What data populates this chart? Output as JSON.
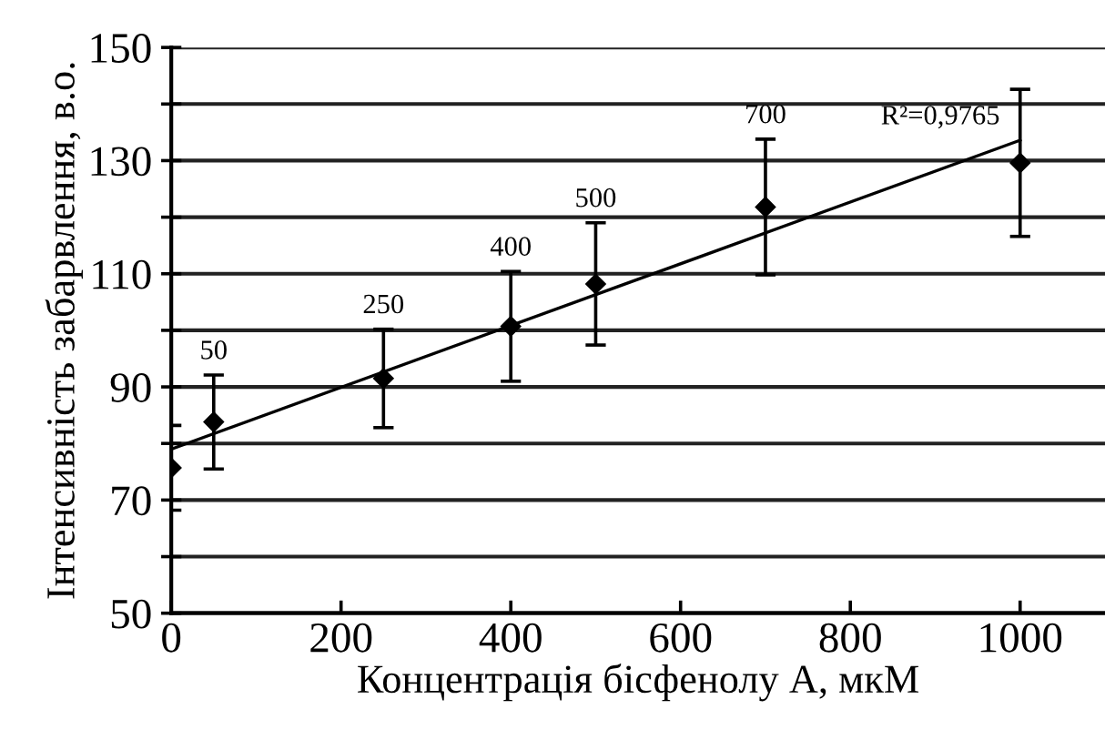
{
  "chart_data": {
    "type": "scatter",
    "xlabel": "Концентрація бісфенолу А, мкМ",
    "ylabel": "Інтенсивність забарвлення, в.о.",
    "series": [
      {
        "color": "#000000",
        "x": [
          0,
          50,
          250,
          400,
          500,
          700,
          1000
        ],
        "values": [
          75.7,
          83.8,
          91.5,
          100.7,
          108.2,
          121.8,
          129.6
        ],
        "errors": [
          7.5,
          8.3,
          8.7,
          9.7,
          10.8,
          12,
          13
        ],
        "marker": "diamond"
      },
      {
        "type": "line",
        "color": "#000000",
        "x": [
          0,
          1000
        ],
        "values": [
          79,
          133.6
        ],
        "line_style": "solid",
        "marker": "none"
      }
    ],
    "annotations": [
      {
        "text": "50",
        "x": 50,
        "y": 92.1
      },
      {
        "text": "250",
        "x": 250,
        "y": 100.2
      },
      {
        "text": "400",
        "x": 400,
        "y": 110.4
      },
      {
        "text": "500",
        "x": 500,
        "y": 119
      },
      {
        "text": "700",
        "x": 700,
        "y": 133.8
      },
      {
        "text": "R²=0,9765",
        "x": 1000,
        "y": 133.6
      }
    ],
    "xlim": [
      0,
      1100
    ],
    "xticks": [
      0,
      200,
      400,
      600,
      800,
      1000
    ],
    "ylim": [
      50,
      150
    ],
    "yticks": [
      50,
      {
        "value": 60,
        "label": null
      },
      70,
      {
        "value": 80,
        "label": null
      },
      90,
      {
        "value": 100,
        "label": null
      },
      110,
      {
        "value": 120,
        "label": null
      },
      130,
      {
        "value": 140,
        "label": null
      },
      150
    ],
    "grid": "y",
    "legend": false
  }
}
